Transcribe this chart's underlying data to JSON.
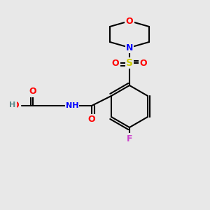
{
  "background_color": "#e8e8e8",
  "bond_color": "#000000",
  "atom_colors": {
    "O": "#ff0000",
    "N": "#0000ff",
    "S": "#cccc00",
    "F": "#cc44cc",
    "C": "#000000",
    "H": "#5a8a8a"
  },
  "font_size": 9,
  "bond_width": 1.5
}
